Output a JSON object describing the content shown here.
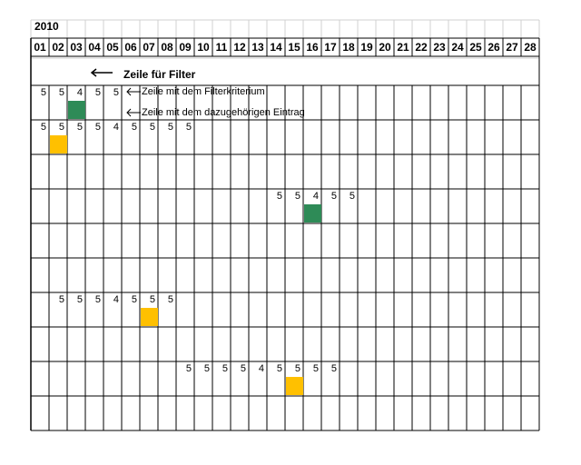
{
  "sheet": {
    "year": "2010",
    "days": [
      "01",
      "02",
      "03",
      "04",
      "05",
      "06",
      "07",
      "08",
      "09",
      "10",
      "11",
      "12",
      "13",
      "14",
      "15",
      "16",
      "17",
      "18",
      "19",
      "20",
      "21",
      "22",
      "23",
      "24",
      "25",
      "26",
      "27",
      "28"
    ],
    "filter_row_label": "Zeile für Filter",
    "annotation_filter_criterion": "Zeile mit dem Filterkriterium",
    "annotation_entry": "Zeile mit dem dazugehörigen Eintrag",
    "colors": {
      "green": "#2e8b57",
      "yellow": "#ffc000",
      "grid": "#000000",
      "light_grid": "#d0d0d0"
    },
    "blocks": [
      {
        "values": [
          [
            0,
            "5"
          ],
          [
            1,
            "5"
          ],
          [
            2,
            "4"
          ],
          [
            3,
            "5"
          ],
          [
            4,
            "5"
          ]
        ],
        "marker": {
          "col": 2,
          "color": "green"
        }
      },
      {
        "values": [
          [
            0,
            "5"
          ],
          [
            1,
            "5"
          ],
          [
            2,
            "5"
          ],
          [
            3,
            "5"
          ],
          [
            4,
            "4"
          ],
          [
            5,
            "5"
          ],
          [
            6,
            "5"
          ],
          [
            7,
            "5"
          ],
          [
            8,
            "5"
          ]
        ],
        "marker": {
          "col": 1,
          "color": "yellow"
        }
      },
      {
        "values": [],
        "marker": null
      },
      {
        "values": [
          [
            13,
            "5"
          ],
          [
            14,
            "5"
          ],
          [
            15,
            "4"
          ],
          [
            16,
            "5"
          ],
          [
            17,
            "5"
          ]
        ],
        "marker": {
          "col": 15,
          "color": "green"
        }
      },
      {
        "values": [],
        "marker": null
      },
      {
        "values": [],
        "marker": null
      },
      {
        "values": [
          [
            1,
            "5"
          ],
          [
            2,
            "5"
          ],
          [
            3,
            "5"
          ],
          [
            4,
            "4"
          ],
          [
            5,
            "5"
          ],
          [
            6,
            "5"
          ],
          [
            7,
            "5"
          ]
        ],
        "marker": {
          "col": 6,
          "color": "yellow"
        }
      },
      {
        "values": [],
        "marker": null
      },
      {
        "values": [
          [
            8,
            "5"
          ],
          [
            9,
            "5"
          ],
          [
            10,
            "5"
          ],
          [
            11,
            "5"
          ],
          [
            12,
            "4"
          ],
          [
            13,
            "5"
          ],
          [
            14,
            "5"
          ],
          [
            15,
            "5"
          ],
          [
            16,
            "5"
          ]
        ],
        "marker": {
          "col": 14,
          "color": "yellow"
        }
      },
      {
        "values": [],
        "marker": null
      }
    ]
  }
}
